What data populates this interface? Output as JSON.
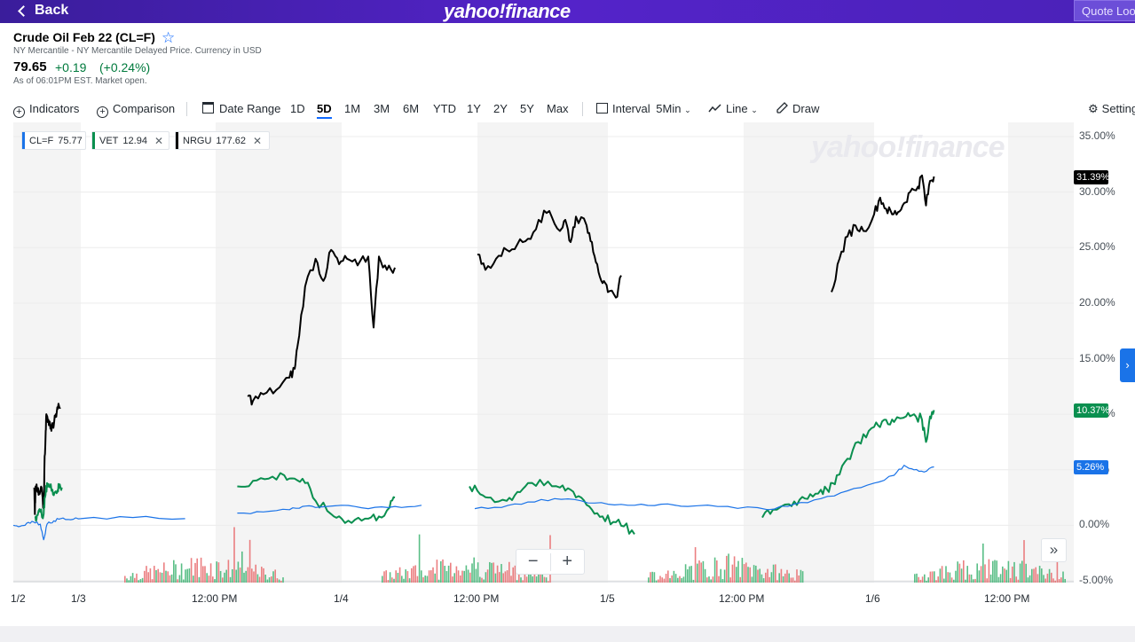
{
  "header": {
    "back_label": "Back",
    "logo": "yahoo!finance",
    "search_placeholder": "Quote Lookup"
  },
  "quote": {
    "title": "Crude Oil Feb 22 (CL=F)",
    "subtitle": "NY Mercantile - NY Mercantile Delayed Price. Currency in USD",
    "price": "79.65",
    "change": "+0.19",
    "change_pct": "(+0.24%)",
    "as_of": "As of 06:01PM EST. Market open."
  },
  "toolbar": {
    "indicators": "Indicators",
    "comparison": "Comparison",
    "date_range": "Date Range",
    "ranges": [
      "1D",
      "5D",
      "1M",
      "3M",
      "6M",
      "YTD",
      "1Y",
      "2Y",
      "5Y",
      "Max"
    ],
    "active_range": "5D",
    "interval_label": "Interval",
    "interval_value": "5Min",
    "line": "Line",
    "draw": "Draw",
    "settings": "Settings"
  },
  "legend": [
    {
      "symbol": "CL=F",
      "value": "75.77",
      "color": "#1a73e8",
      "removable": false
    },
    {
      "symbol": "VET",
      "value": "12.94",
      "color": "#0a8f4f",
      "removable": true
    },
    {
      "symbol": "NRGU",
      "value": "177.62",
      "color": "#000000",
      "removable": true
    }
  ],
  "tags": {
    "nrgu": "31.39%",
    "vet": "10.37%",
    "clf": "5.26%"
  },
  "watermark": "yahoo!finance",
  "colors": {
    "nrgu": "#000000",
    "vet": "#0a8f4f",
    "clf": "#1a73e8",
    "vol_up": "#3cb371",
    "vol_down": "#e8696b"
  },
  "chart_data": {
    "type": "line",
    "y_ticks": [
      "35.00%",
      "30.00%",
      "25.00%",
      "20.00%",
      "15.00%",
      "10.00%",
      "5.00%",
      "0.00%",
      "-5.00%"
    ],
    "ylim": [
      -5,
      35
    ],
    "x_labels": [
      "1/2",
      "1/3",
      "12:00 PM",
      "1/4",
      "12:00 PM",
      "1/5",
      "12:00 PM",
      "1/6",
      "12:00 PM"
    ],
    "series": [
      {
        "name": "NRGU",
        "values": [
          [
            0.31,
            3.4
          ],
          [
            0.32,
            1.0
          ],
          [
            0.33,
            3.5
          ],
          [
            0.36,
            3.0
          ],
          [
            0.39,
            2.8
          ],
          [
            0.42,
            3.4
          ],
          [
            0.45,
            1.5
          ],
          [
            0.46,
            5.0
          ],
          [
            0.48,
            8.5
          ],
          [
            0.49,
            10.0
          ],
          [
            0.52,
            9.5
          ],
          [
            0.55,
            8.7
          ],
          [
            0.58,
            9.2
          ],
          [
            0.6,
            9.0
          ],
          [
            0.63,
            10.0
          ],
          [
            0.66,
            10.5
          ],
          [
            0.7,
            10.6
          ],
          [
            1.64,
            11.6
          ],
          [
            1.66,
            11.2
          ],
          [
            1.7,
            11.8
          ],
          [
            1.75,
            12.2
          ],
          [
            1.8,
            13.3
          ],
          [
            1.82,
            14.1
          ],
          [
            1.83,
            16.0
          ],
          [
            1.86,
            21.5
          ],
          [
            1.9,
            24.0
          ],
          [
            1.93,
            22.0
          ],
          [
            1.96,
            24.8
          ],
          [
            1.99,
            23.5
          ],
          [
            2.02,
            24.0
          ],
          [
            2.06,
            23.4
          ],
          [
            2.1,
            24.2
          ],
          [
            2.12,
            17.8
          ],
          [
            2.14,
            24.2
          ],
          [
            2.17,
            23.0
          ],
          [
            2.2,
            23.2
          ],
          [
            2.51,
            24.4
          ],
          [
            2.54,
            23.0
          ],
          [
            2.58,
            24.0
          ],
          [
            2.62,
            24.8
          ],
          [
            2.66,
            25.3
          ],
          [
            2.7,
            25.8
          ],
          [
            2.74,
            27.5
          ],
          [
            2.78,
            28.3
          ],
          [
            2.82,
            26.5
          ],
          [
            2.84,
            27.5
          ],
          [
            2.86,
            25.5
          ],
          [
            2.88,
            27.8
          ],
          [
            2.92,
            27.0
          ],
          [
            2.94,
            25.5
          ],
          [
            2.96,
            23.5
          ],
          [
            2.98,
            21.8
          ],
          [
            3.0,
            21.0
          ],
          [
            3.03,
            20.5
          ],
          [
            3.05,
            22.5
          ],
          [
            3.84,
            21.0
          ],
          [
            3.87,
            24.0
          ],
          [
            3.9,
            26.0
          ],
          [
            3.93,
            27.0
          ],
          [
            3.96,
            26.5
          ],
          [
            4.0,
            28.0
          ],
          [
            4.03,
            29.5
          ],
          [
            4.06,
            28.5
          ],
          [
            4.09,
            28.0
          ],
          [
            4.12,
            28.2
          ],
          [
            4.15,
            29.0
          ],
          [
            4.18,
            30.0
          ],
          [
            4.22,
            30.5
          ],
          [
            4.24,
            31.5
          ],
          [
            4.26,
            28.8
          ],
          [
            4.28,
            31.0
          ],
          [
            4.3,
            31.4
          ]
        ]
      },
      {
        "name": "VET",
        "values": [
          [
            0.32,
            0.8
          ],
          [
            0.35,
            0.9
          ],
          [
            0.4,
            1.2
          ],
          [
            0.45,
            1.0
          ],
          [
            0.47,
            2.5
          ],
          [
            0.5,
            3.8
          ],
          [
            0.53,
            3.5
          ],
          [
            0.58,
            3.2
          ],
          [
            0.62,
            3.0
          ],
          [
            0.66,
            3.2
          ],
          [
            0.68,
            3.5
          ],
          [
            0.72,
            3.4
          ],
          [
            1.6,
            3.5
          ],
          [
            1.66,
            4.0
          ],
          [
            1.72,
            4.2
          ],
          [
            1.78,
            4.5
          ],
          [
            1.82,
            4.2
          ],
          [
            1.86,
            3.8
          ],
          [
            1.9,
            2.2
          ],
          [
            1.96,
            1.0
          ],
          [
            2.0,
            0.6
          ],
          [
            2.05,
            0.5
          ],
          [
            2.1,
            0.6
          ],
          [
            2.14,
            0.8
          ],
          [
            2.18,
            1.6
          ],
          [
            2.2,
            2.5
          ],
          [
            2.48,
            3.5
          ],
          [
            2.52,
            2.8
          ],
          [
            2.56,
            2.5
          ],
          [
            2.62,
            2.2
          ],
          [
            2.66,
            3.0
          ],
          [
            2.7,
            3.8
          ],
          [
            2.76,
            3.6
          ],
          [
            2.82,
            3.4
          ],
          [
            2.86,
            3.2
          ],
          [
            2.9,
            2.5
          ],
          [
            2.94,
            1.4
          ],
          [
            2.98,
            0.8
          ],
          [
            3.02,
            0.3
          ],
          [
            3.06,
            -0.1
          ],
          [
            3.1,
            -0.8
          ],
          [
            3.58,
            0.7
          ],
          [
            3.62,
            1.4
          ],
          [
            3.68,
            1.9
          ],
          [
            3.72,
            2.3
          ],
          [
            3.76,
            2.8
          ],
          [
            3.8,
            3.2
          ],
          [
            3.83,
            3.0
          ],
          [
            3.86,
            4.5
          ],
          [
            3.9,
            6.0
          ],
          [
            3.94,
            7.5
          ],
          [
            3.98,
            8.5
          ],
          [
            4.02,
            9.0
          ],
          [
            4.06,
            9.5
          ],
          [
            4.1,
            9.3
          ],
          [
            4.16,
            9.8
          ],
          [
            4.2,
            10.0
          ],
          [
            4.24,
            9.5
          ],
          [
            4.26,
            7.5
          ],
          [
            4.28,
            9.8
          ],
          [
            4.3,
            10.37
          ]
        ]
      },
      {
        "name": "CL=F",
        "values": [
          [
            0.0,
            0.0
          ],
          [
            0.1,
            -0.1
          ],
          [
            0.2,
            0.2
          ],
          [
            0.3,
            0.3
          ],
          [
            0.4,
            0.1
          ],
          [
            0.45,
            -1.3
          ],
          [
            0.5,
            0.1
          ],
          [
            0.6,
            0.4
          ],
          [
            0.7,
            0.6
          ],
          [
            0.85,
            0.5
          ],
          [
            1.0,
            0.6
          ],
          [
            1.2,
            0.7
          ],
          [
            1.4,
            0.6
          ],
          [
            1.6,
            1.1
          ],
          [
            1.7,
            1.2
          ],
          [
            1.8,
            1.4
          ],
          [
            1.85,
            1.7
          ],
          [
            1.9,
            1.6
          ],
          [
            2.0,
            1.8
          ],
          [
            2.1,
            1.5
          ],
          [
            2.2,
            1.7
          ],
          [
            2.3,
            1.8
          ],
          [
            2.5,
            1.5
          ],
          [
            2.6,
            1.6
          ],
          [
            2.7,
            2.1
          ],
          [
            2.8,
            2.4
          ],
          [
            2.9,
            2.2
          ],
          [
            3.0,
            1.9
          ],
          [
            3.1,
            1.8
          ],
          [
            3.2,
            1.9
          ],
          [
            3.3,
            1.7
          ],
          [
            3.45,
            1.7
          ],
          [
            3.6,
            1.4
          ],
          [
            3.7,
            1.9
          ],
          [
            3.8,
            2.4
          ],
          [
            3.9,
            3.1
          ],
          [
            4.0,
            3.8
          ],
          [
            4.1,
            4.5
          ],
          [
            4.15,
            5.4
          ],
          [
            4.2,
            5.0
          ],
          [
            4.25,
            4.8
          ],
          [
            4.3,
            5.26
          ]
        ]
      }
    ]
  }
}
